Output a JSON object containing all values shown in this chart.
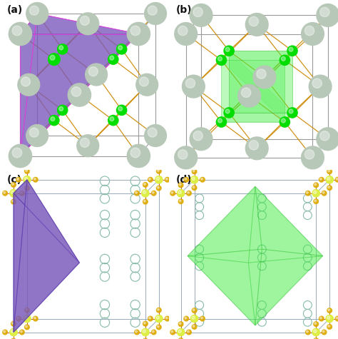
{
  "figsize": [
    4.74,
    4.75
  ],
  "dpi": 100,
  "background": "#ffffff",
  "labels": [
    "(a)",
    "(b)",
    "(c)",
    "(d)"
  ],
  "label_color": "#111111",
  "label_fontsize": 10,
  "panel_a": {
    "cube_color": "#999999",
    "bond_color": "#cc8800",
    "poly_color": "#7755bb",
    "poly_alpha": 0.65,
    "poly_edge": "#cc44cc",
    "atom_large_color": "#b8c8b8",
    "atom_small_color": "#00dd00"
  },
  "panel_b": {
    "cube_color": "#999999",
    "bond_color": "#cc8800",
    "poly_color": "#44ee44",
    "poly_alpha": 0.5,
    "poly_edge": "#22bb22",
    "atom_large_color": "#b8c8b8",
    "atom_small_color": "#00dd00"
  },
  "panel_c": {
    "frame_color": "#99aabb",
    "poly_color": "#7755bb",
    "poly_alpha": 0.75,
    "poly_edge": "#5533aa",
    "chain_color": "#88bbaa",
    "node_color": "#ddee44",
    "arm_color": "#cc3322",
    "tip_color": "#ddaa00"
  },
  "panel_d": {
    "frame_color": "#99aabb",
    "poly_color": "#44ee44",
    "poly_alpha": 0.55,
    "poly_edge": "#22bb22",
    "chain_color": "#88bbaa",
    "node_color": "#ddee44",
    "arm_color": "#cc3322",
    "tip_color": "#ddaa00"
  }
}
